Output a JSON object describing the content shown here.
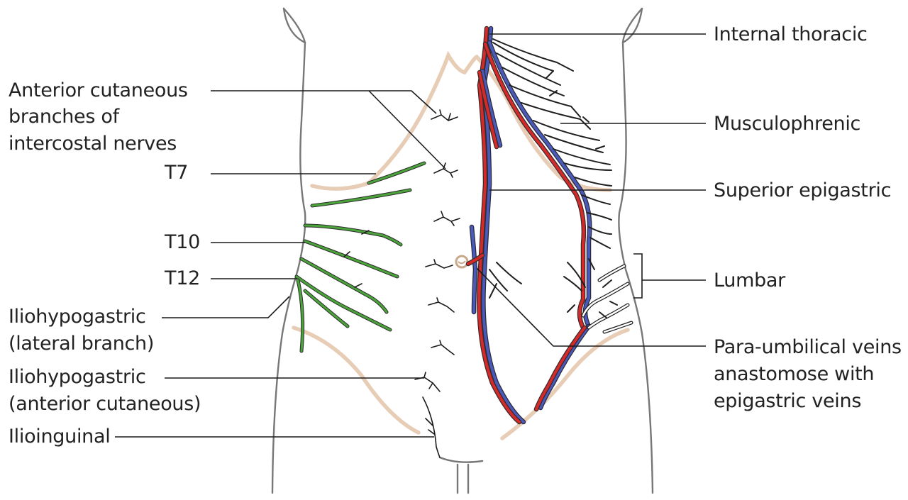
{
  "labels_left": {
    "anterior_cutaneous_line1": "Anterior cutaneous",
    "anterior_cutaneous_line2": "branches of",
    "anterior_cutaneous_line3": "intercostal nerves",
    "t7": "T7",
    "t10": "T10",
    "t12": "T12",
    "iliohypo_lateral_line1": "Iliohypogastric",
    "iliohypo_lateral_line2": "(lateral branch)",
    "iliohypo_anterior_line1": "Iliohypogastric",
    "iliohypo_anterior_line2": "(anterior cutaneous)",
    "ilioinguinal": "Ilioinguinal"
  },
  "labels_right": {
    "internal_thoracic": "Internal thoracic",
    "musculophrenic": "Musculophrenic",
    "superior_epigastric": "Superior epigastric",
    "lumbar": "Lumbar",
    "paraumbilical_line1": "Para-umbilical veins",
    "paraumbilical_line2": "anastomose with",
    "paraumbilical_line3": "epigastric veins"
  },
  "colors": {
    "nerve": "#4aa43a",
    "artery": "#d42a2a",
    "vein": "#4a5ab8",
    "rib_margin": "#e8cdb6",
    "outline": "#777777"
  }
}
